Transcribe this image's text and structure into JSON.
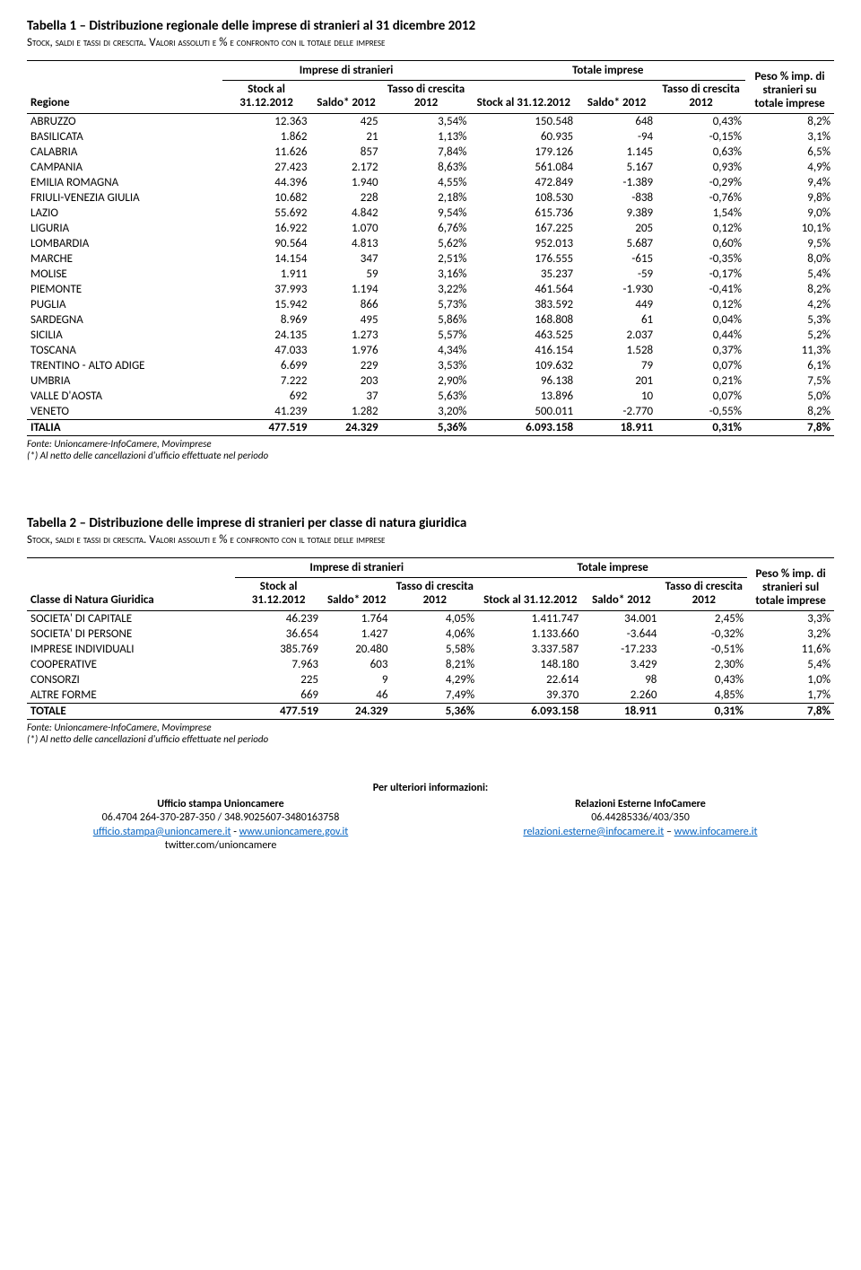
{
  "table1": {
    "title": "Tabella 1 – Distribuzione regionale delle imprese di stranieri al 31 dicembre 2012",
    "subtitle_a": "Stock, saldi e tassi di crescita. ",
    "subtitle_b": "Valori assoluti e % e confronto con il totale delle imprese",
    "group_headers": {
      "left": "Imprese di stranieri",
      "right": "Totale imprese",
      "peso": "Peso % imp. di stranieri su totale imprese"
    },
    "col_headers": {
      "regione": "Regione",
      "stock": "Stock al 31.12.2012",
      "saldo": "Saldo* 2012",
      "tasso": "Tasso di crescita 2012"
    },
    "rows": [
      {
        "label": "ABRUZZO",
        "s1": "12.363",
        "s2": "425",
        "s3": "3,54%",
        "t1": "150.548",
        "t2": "648",
        "t3": "0,43%",
        "p": "8,2%"
      },
      {
        "label": "BASILICATA",
        "s1": "1.862",
        "s2": "21",
        "s3": "1,13%",
        "t1": "60.935",
        "t2": "-94",
        "t3": "-0,15%",
        "p": "3,1%"
      },
      {
        "label": "CALABRIA",
        "s1": "11.626",
        "s2": "857",
        "s3": "7,84%",
        "t1": "179.126",
        "t2": "1.145",
        "t3": "0,63%",
        "p": "6,5%"
      },
      {
        "label": "CAMPANIA",
        "s1": "27.423",
        "s2": "2.172",
        "s3": "8,63%",
        "t1": "561.084",
        "t2": "5.167",
        "t3": "0,93%",
        "p": "4,9%"
      },
      {
        "label": "EMILIA ROMAGNA",
        "s1": "44.396",
        "s2": "1.940",
        "s3": "4,55%",
        "t1": "472.849",
        "t2": "-1.389",
        "t3": "-0,29%",
        "p": "9,4%"
      },
      {
        "label": "FRIULI-VENEZIA GIULIA",
        "s1": "10.682",
        "s2": "228",
        "s3": "2,18%",
        "t1": "108.530",
        "t2": "-838",
        "t3": "-0,76%",
        "p": "9,8%"
      },
      {
        "label": "LAZIO",
        "s1": "55.692",
        "s2": "4.842",
        "s3": "9,54%",
        "t1": "615.736",
        "t2": "9.389",
        "t3": "1,54%",
        "p": "9,0%"
      },
      {
        "label": "LIGURIA",
        "s1": "16.922",
        "s2": "1.070",
        "s3": "6,76%",
        "t1": "167.225",
        "t2": "205",
        "t3": "0,12%",
        "p": "10,1%"
      },
      {
        "label": "LOMBARDIA",
        "s1": "90.564",
        "s2": "4.813",
        "s3": "5,62%",
        "t1": "952.013",
        "t2": "5.687",
        "t3": "0,60%",
        "p": "9,5%"
      },
      {
        "label": "MARCHE",
        "s1": "14.154",
        "s2": "347",
        "s3": "2,51%",
        "t1": "176.555",
        "t2": "-615",
        "t3": "-0,35%",
        "p": "8,0%"
      },
      {
        "label": "MOLISE",
        "s1": "1.911",
        "s2": "59",
        "s3": "3,16%",
        "t1": "35.237",
        "t2": "-59",
        "t3": "-0,17%",
        "p": "5,4%"
      },
      {
        "label": "PIEMONTE",
        "s1": "37.993",
        "s2": "1.194",
        "s3": "3,22%",
        "t1": "461.564",
        "t2": "-1.930",
        "t3": "-0,41%",
        "p": "8,2%"
      },
      {
        "label": "PUGLIA",
        "s1": "15.942",
        "s2": "866",
        "s3": "5,73%",
        "t1": "383.592",
        "t2": "449",
        "t3": "0,12%",
        "p": "4,2%"
      },
      {
        "label": "SARDEGNA",
        "s1": "8.969",
        "s2": "495",
        "s3": "5,86%",
        "t1": "168.808",
        "t2": "61",
        "t3": "0,04%",
        "p": "5,3%"
      },
      {
        "label": "SICILIA",
        "s1": "24.135",
        "s2": "1.273",
        "s3": "5,57%",
        "t1": "463.525",
        "t2": "2.037",
        "t3": "0,44%",
        "p": "5,2%"
      },
      {
        "label": "TOSCANA",
        "s1": "47.033",
        "s2": "1.976",
        "s3": "4,34%",
        "t1": "416.154",
        "t2": "1.528",
        "t3": "0,37%",
        "p": "11,3%"
      },
      {
        "label": "TRENTINO - ALTO ADIGE",
        "s1": "6.699",
        "s2": "229",
        "s3": "3,53%",
        "t1": "109.632",
        "t2": "79",
        "t3": "0,07%",
        "p": "6,1%"
      },
      {
        "label": "UMBRIA",
        "s1": "7.222",
        "s2": "203",
        "s3": "2,90%",
        "t1": "96.138",
        "t2": "201",
        "t3": "0,21%",
        "p": "7,5%"
      },
      {
        "label": "VALLE D'AOSTA",
        "s1": "692",
        "s2": "37",
        "s3": "5,63%",
        "t1": "13.896",
        "t2": "10",
        "t3": "0,07%",
        "p": "5,0%"
      },
      {
        "label": "VENETO",
        "s1": "41.239",
        "s2": "1.282",
        "s3": "3,20%",
        "t1": "500.011",
        "t2": "-2.770",
        "t3": "-0,55%",
        "p": "8,2%"
      }
    ],
    "total": {
      "label": "ITALIA",
      "s1": "477.519",
      "s2": "24.329",
      "s3": "5,36%",
      "t1": "6.093.158",
      "t2": "18.911",
      "t3": "0,31%",
      "p": "7,8%"
    }
  },
  "table2": {
    "title": "Tabella 2 – Distribuzione delle imprese di stranieri per classe di natura giuridica",
    "subtitle_a": "Stock, saldi e tassi di crescita. ",
    "subtitle_b": "Valori assoluti e % e confronto con il totale delle imprese",
    "group_headers": {
      "left": "Imprese di stranieri",
      "right": "Totale imprese",
      "peso": "Peso % imp. di stranieri sul totale imprese"
    },
    "col_headers": {
      "classe": "Classe di Natura Giuridica",
      "stock": "Stock al 31.12.2012",
      "saldo": "Saldo* 2012",
      "tasso": "Tasso di crescita 2012"
    },
    "rows": [
      {
        "label": "SOCIETA' DI CAPITALE",
        "s1": "46.239",
        "s2": "1.764",
        "s3": "4,05%",
        "t1": "1.411.747",
        "t2": "34.001",
        "t3": "2,45%",
        "p": "3,3%"
      },
      {
        "label": "SOCIETA' DI PERSONE",
        "s1": "36.654",
        "s2": "1.427",
        "s3": "4,06%",
        "t1": "1.133.660",
        "t2": "-3.644",
        "t3": "-0,32%",
        "p": "3,2%"
      },
      {
        "label": "IMPRESE INDIVIDUALI",
        "s1": "385.769",
        "s2": "20.480",
        "s3": "5,58%",
        "t1": "3.337.587",
        "t2": "-17.233",
        "t3": "-0,51%",
        "p": "11,6%"
      },
      {
        "label": "COOPERATIVE",
        "s1": "7.963",
        "s2": "603",
        "s3": "8,21%",
        "t1": "148.180",
        "t2": "3.429",
        "t3": "2,30%",
        "p": "5,4%"
      },
      {
        "label": "CONSORZI",
        "s1": "225",
        "s2": "9",
        "s3": "4,29%",
        "t1": "22.614",
        "t2": "98",
        "t3": "0,43%",
        "p": "1,0%"
      },
      {
        "label": "ALTRE FORME",
        "s1": "669",
        "s2": "46",
        "s3": "7,49%",
        "t1": "39.370",
        "t2": "2.260",
        "t3": "4,85%",
        "p": "1,7%"
      }
    ],
    "total": {
      "label": "TOTALE",
      "s1": "477.519",
      "s2": "24.329",
      "s3": "5,36%",
      "t1": "6.093.158",
      "t2": "18.911",
      "t3": "0,31%",
      "p": "7,8%"
    }
  },
  "footnote": {
    "line1": "Fonte: Unioncamere-InfoCamere, Movimprese",
    "line2": "(*) Al netto delle cancellazioni d'ufficio effettuate nel periodo"
  },
  "footer": {
    "title": "Per ulteriori informazioni:",
    "left": {
      "h": "Ufficio stampa Unioncamere",
      "phone": "06.4704 264-370-287-350 / 348.9025607-3480163758",
      "email": "ufficio.stampa@unioncamere.it",
      "web": "www.unioncamere.gov.it",
      "twitter": "twitter.com/unioncamere"
    },
    "right": {
      "h": "Relazioni Esterne InfoCamere",
      "phone": "06.44285336/403/350",
      "email": "relazioni.esterne@infocamere.it",
      "web": "www.infocamere.it"
    }
  }
}
